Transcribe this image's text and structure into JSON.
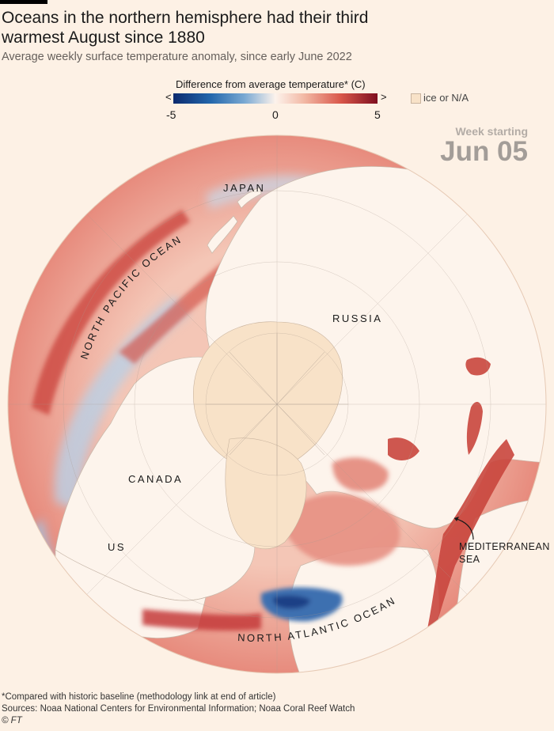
{
  "header": {
    "title": "Oceans in the northern hemisphere had their third warmest August since 1880",
    "subtitle": "Average weekly surface temperature anomaly, since early June 2022"
  },
  "legend": {
    "title": "Difference from average temperature* (C)",
    "arrow_left": "<",
    "arrow_right": ">",
    "ticks": [
      "-5",
      "0",
      "5"
    ],
    "ice_label": "ice or N/A",
    "colors": {
      "cold": "#0b2a6e",
      "neutral": "#fdf3ec",
      "warm": "#7e0e1f",
      "ice": "#f8e2c8"
    }
  },
  "week": {
    "label": "Week starting",
    "value": "Jun 05"
  },
  "map_labels": {
    "japan": "JAPAN",
    "north_pacific": "NORTH PACIFIC OCEAN",
    "russia": "RUSSIA",
    "canada": "CANADA",
    "us": "US",
    "mediterranean_1": "MEDITERRANEAN",
    "mediterranean_2": "SEA",
    "north_atlantic": "NORTH ATLANTIC OCEAN"
  },
  "footer": {
    "note": "*Compared with historic baseline (methodology link at end of article)",
    "sources": "Sources: Noaa National Centers for Environmental Information; Noaa Coral Reef Watch",
    "copyright": "© FT"
  }
}
